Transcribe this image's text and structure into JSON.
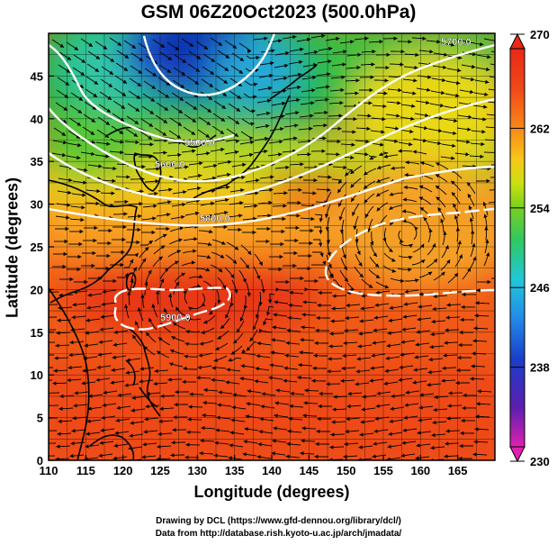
{
  "title": "GSM 06Z20Oct2023 (500.0hPa)",
  "xlabel": "Longitude (degrees)",
  "ylabel": "Latitude  (degrees)",
  "credits": [
    "Drawing by DCL (https://www.gfd-dennou.org/library/dcl/)",
    "Data from http://database.rish.kyoto-u.ac.jp/arch/jmadata/"
  ],
  "map": {
    "x_ticks": [
      "110",
      "115",
      "120",
      "125",
      "130",
      "135",
      "140",
      "145",
      "150",
      "155",
      "160",
      "165"
    ],
    "y_ticks": [
      "0",
      "5",
      "10",
      "15",
      "20",
      "25",
      "30",
      "35",
      "40",
      "45"
    ],
    "lon_range": [
      110,
      170
    ],
    "lat_range": [
      0,
      50
    ],
    "field": "temperature (K), shaded",
    "overlays": [
      "streamlines (wind)",
      "geopotential height contours (white)",
      "coastlines (black)"
    ],
    "contour_labels": [
      "5700.0",
      "5500.0",
      "5600.0",
      "5800.0",
      "5900.0"
    ]
  },
  "colorbar": {
    "ticks": [
      "270",
      "262",
      "254",
      "246",
      "238",
      "230"
    ],
    "range": [
      230,
      270
    ],
    "colors": [
      "#e020b0",
      "#5a1fb0",
      "#1a3ec8",
      "#2288e8",
      "#20c8d8",
      "#30c860",
      "#78d020",
      "#c8e010",
      "#f8c818",
      "#f88818",
      "#f04818",
      "#e82818"
    ]
  }
}
